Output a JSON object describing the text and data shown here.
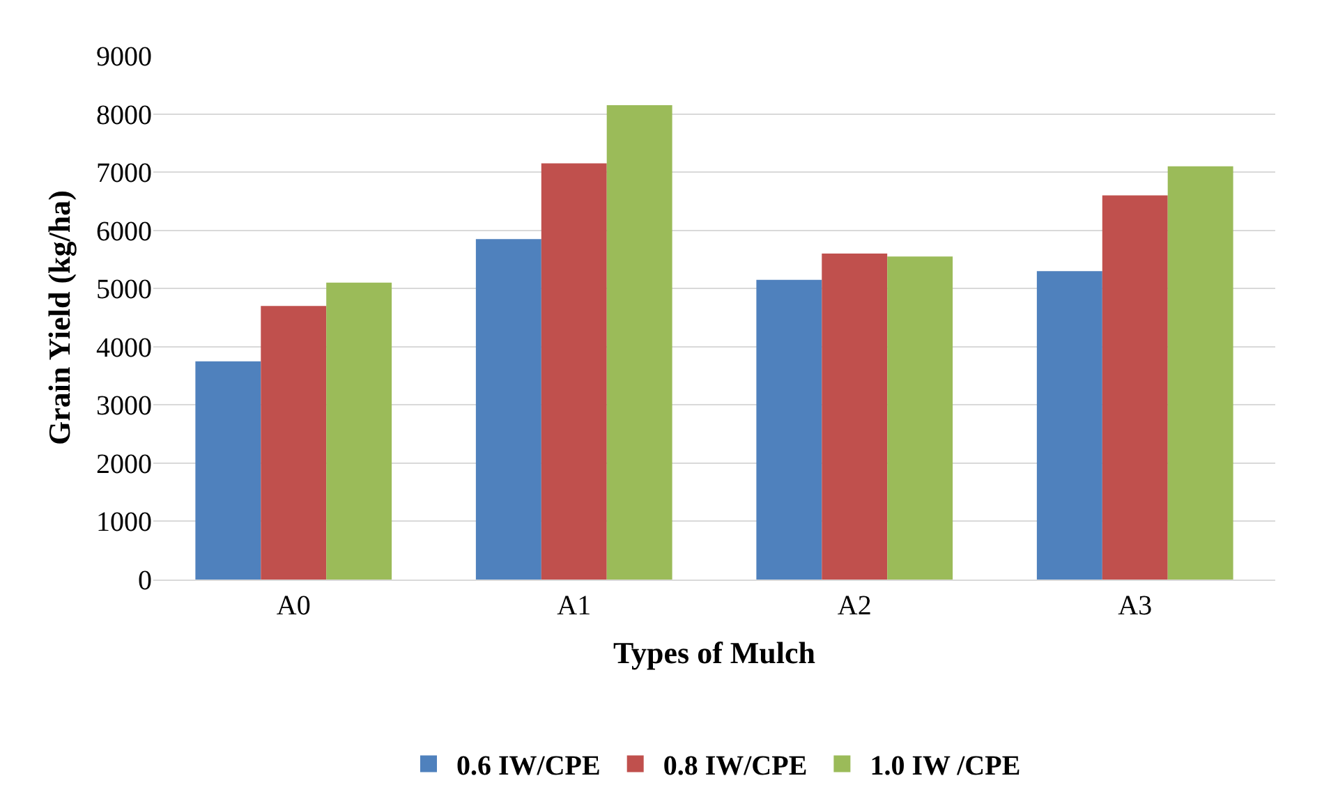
{
  "chart_data": {
    "type": "bar",
    "xlabel": "Types of Mulch",
    "ylabel": "Grain Yield (kg/ha)",
    "categories": [
      "A0",
      "A1",
      "A2",
      "A3"
    ],
    "series": [
      {
        "name": "0.6 IW/CPE",
        "color": "#4f81bd",
        "values": [
          3750,
          5850,
          5150,
          5300
        ]
      },
      {
        "name": "0.8 IW/CPE",
        "color": "#c0504d",
        "values": [
          4700,
          7150,
          5600,
          6600
        ]
      },
      {
        "name": "1.0 IW /CPE",
        "color": "#9bbb59",
        "values": [
          5100,
          8150,
          5550,
          7100
        ]
      }
    ],
    "ylim": [
      0,
      9000
    ],
    "yticks": [
      0,
      1000,
      2000,
      3000,
      4000,
      5000,
      6000,
      7000,
      8000,
      9000
    ],
    "grid": "y",
    "legend": "bottom"
  }
}
